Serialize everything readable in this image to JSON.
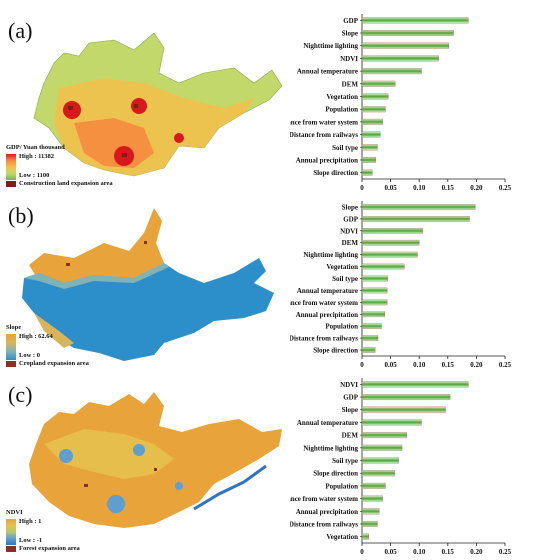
{
  "colors": {
    "bar_green": "#5aa83c",
    "bar_light": "#d8efcf",
    "bar_dark_edge": "#8a3a2e",
    "axis": "#222222"
  },
  "panels": [
    {
      "label": "(a)",
      "legend": {
        "title": "GDP/ Yuan thousand",
        "high": "High : 11382",
        "low": "Low : 1100",
        "expansion": "Construction land expansion area",
        "ramp": [
          "#d7191c",
          "#f58b3f",
          "#f5c04b",
          "#c3d86a",
          "#6fb84b"
        ],
        "expansion_color": "#7a1f1a"
      }
    },
    {
      "label": "(b)",
      "legend": {
        "title": "Slope",
        "high": "High : 62.64",
        "low": "Low : 0",
        "expansion": "Cropland expansion area",
        "ramp": [
          "#e8a33a",
          "#d9b45a",
          "#7fb3b6",
          "#2c8fc9"
        ],
        "expansion_color": "#8a2f25"
      }
    },
    {
      "label": "(c)",
      "legend": {
        "title": "NDVI",
        "high": "High : 1",
        "low": "Low : -1",
        "expansion": "Forest expansion area",
        "ramp": [
          "#e8a33a",
          "#e6c14f",
          "#b9c66c",
          "#5f9fd0",
          "#2f74c0"
        ],
        "expansion_color": "#8a2f25"
      }
    }
  ],
  "chart_data": [
    {
      "type": "bar",
      "orientation": "horizontal",
      "categories": [
        "GDP",
        "Slope",
        "Nighttime lighting",
        "NDVI",
        "Annual temperature",
        "DEM",
        "Vegetation",
        "Population",
        "Distance from water system",
        "Distance from railways",
        "Soil type",
        "Annual precipitation",
        "Slope direction"
      ],
      "values": [
        0.186,
        0.16,
        0.152,
        0.134,
        0.104,
        0.058,
        0.046,
        0.041,
        0.036,
        0.032,
        0.027,
        0.024,
        0.018
      ],
      "xlim": [
        0,
        0.25
      ],
      "xticks": [
        "0",
        "0.05",
        "0.10",
        "0.15",
        "0.20",
        "0.25"
      ]
    },
    {
      "type": "bar",
      "orientation": "horizontal",
      "categories": [
        "Slope",
        "GDP",
        "NDVI",
        "DEM",
        "Nighttime lighting",
        "Vegetation",
        "Soil type",
        "Annual temperature",
        "Distance from water system",
        "Annual precipitation",
        "Population",
        "Distance from railways",
        "Slope direction"
      ],
      "values": [
        0.198,
        0.188,
        0.106,
        0.1,
        0.097,
        0.074,
        0.045,
        0.044,
        0.044,
        0.04,
        0.034,
        0.028,
        0.023
      ],
      "xlim": [
        0,
        0.25
      ],
      "xticks": [
        "0",
        "0.05",
        "0.10",
        "0.15",
        "0.20",
        "0.25"
      ]
    },
    {
      "type": "bar",
      "orientation": "horizontal",
      "categories": [
        "NDVI",
        "GDP",
        "Slope",
        "Annual temperature",
        "DEM",
        "Nighttime lighting",
        "Soil type",
        "Slope direction",
        "Population",
        "Distance from water system",
        "Annual precipitation",
        "Distance from railways",
        "Vegetation"
      ],
      "values": [
        0.186,
        0.154,
        0.146,
        0.104,
        0.078,
        0.07,
        0.064,
        0.057,
        0.041,
        0.036,
        0.03,
        0.027,
        0.012
      ],
      "xlim": [
        0,
        0.25
      ],
      "xticks": [
        "0",
        "0.05",
        "0.10",
        "0.15",
        "0.20",
        "0.25"
      ]
    }
  ]
}
